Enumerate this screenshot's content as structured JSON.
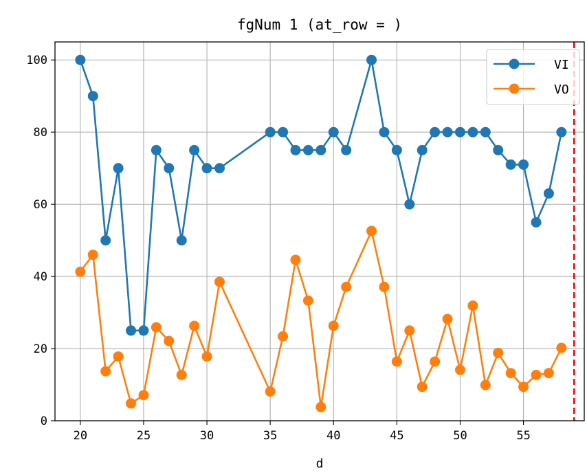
{
  "chart_data": {
    "type": "line",
    "title": "fgNum 1 (at_row = )",
    "xlabel": "d",
    "ylabel": "",
    "xlim": [
      18,
      59.8
    ],
    "ylim": [
      0,
      105
    ],
    "xticks": [
      20,
      25,
      30,
      35,
      40,
      45,
      50,
      55
    ],
    "yticks": [
      0,
      20,
      40,
      60,
      80,
      100
    ],
    "grid": true,
    "legend_position": "top-right",
    "vline": {
      "x": 59,
      "color": "#ff0000",
      "style": "dashed"
    },
    "series": [
      {
        "name": "VI",
        "color": "#1f77b4",
        "x": [
          20,
          21,
          22,
          23,
          24,
          25,
          26,
          27,
          28,
          29,
          30,
          31,
          35,
          36,
          37,
          38,
          39,
          40,
          41,
          43,
          44,
          45,
          46,
          47,
          48,
          49,
          50,
          51,
          52,
          53,
          54,
          55,
          56,
          57,
          58
        ],
        "values": [
          100,
          90,
          50,
          70,
          25,
          25,
          75,
          70,
          50,
          75,
          70,
          70,
          80,
          80,
          75,
          75,
          75,
          80,
          75,
          100,
          80,
          75,
          60,
          75,
          80,
          80,
          80,
          80,
          80,
          75,
          71,
          71,
          55,
          63,
          80
        ]
      },
      {
        "name": "VO",
        "color": "#ff7f0e",
        "x": [
          20,
          21,
          22,
          23,
          24,
          25,
          26,
          27,
          28,
          29,
          30,
          31,
          35,
          36,
          37,
          38,
          39,
          40,
          41,
          43,
          44,
          45,
          46,
          47,
          48,
          49,
          50,
          51,
          52,
          53,
          54,
          55,
          56,
          57,
          58
        ],
        "values": [
          41.3,
          46,
          13.7,
          17.8,
          4.8,
          7.1,
          25.9,
          22.1,
          12.7,
          26.3,
          17.8,
          38.5,
          8.1,
          23.4,
          44.6,
          33.3,
          3.8,
          26.3,
          37.1,
          52.6,
          37.1,
          16.4,
          25,
          9.4,
          16.4,
          28.2,
          14.1,
          31.9,
          9.9,
          18.8,
          13.2,
          9.4,
          12.7,
          13.2,
          20.2
        ]
      }
    ]
  }
}
